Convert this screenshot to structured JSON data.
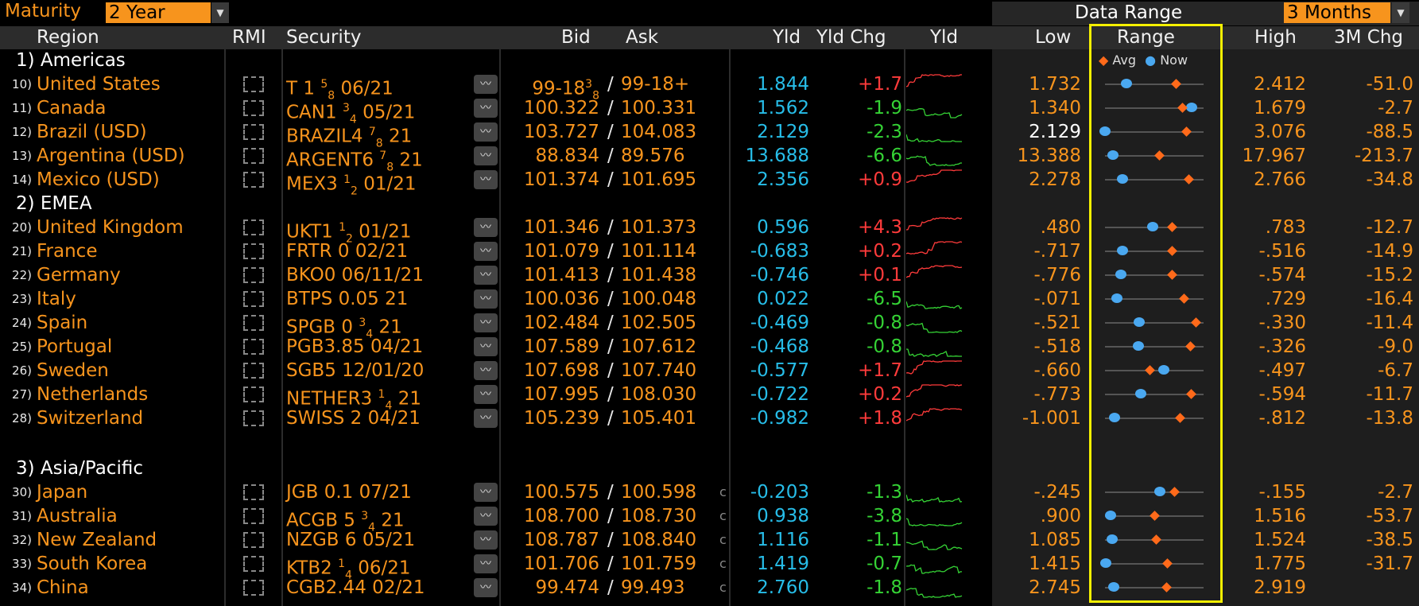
{
  "toolbar": {
    "maturity_label": "Maturity",
    "maturity_value": "2 Year",
    "data_range_label": "Data Range",
    "data_range_value": "3 Months"
  },
  "headers": {
    "region": "Region",
    "rmi": "RMI",
    "security": "Security",
    "bid": "Bid",
    "ask": "Ask",
    "yld": "Yld",
    "yld_chg": "Yld Chg",
    "yld_spark": "Yld",
    "low": "Low",
    "range": "Range",
    "high": "High",
    "chg": "3M Chg",
    "legend_avg": "Avg",
    "legend_now": "Now"
  },
  "colors": {
    "accent": "#f7941d",
    "up": "#ff3b3b",
    "down": "#35d335",
    "yield": "#27bde8",
    "highlight": "#f5f000"
  },
  "groups": [
    {
      "label": "1) Americas"
    },
    {
      "label": "2) EMEA"
    },
    {
      "label": "3) Asia/Pacific"
    }
  ],
  "rows": [
    {
      "idx": "10)",
      "region": "United States",
      "sec_a": "T 1 ",
      "sec_f": "5",
      "sec_d": "8",
      "sec_b": " 06/21",
      "bid": "99-18",
      "bid_f": "3",
      "bid_d": "8",
      "ask": "99-18+",
      "c": "",
      "yld": "1.844",
      "yneg": false,
      "chg": "+1.7",
      "low": "1.732",
      "low_w": false,
      "high": "2.412",
      "m3": "-51.0",
      "now": 0.22,
      "avg": 0.72
    },
    {
      "idx": "11)",
      "region": "Canada",
      "sec_a": "CAN1 ",
      "sec_f": "3",
      "sec_d": "4",
      "sec_b": " 05/21",
      "bid": "100.322",
      "ask": "100.331",
      "c": "",
      "yld": "1.562",
      "yneg": false,
      "chg": "-1.9",
      "low": "1.340",
      "low_w": false,
      "high": "1.679",
      "m3": "-2.7",
      "now": 0.88,
      "avg": 0.78
    },
    {
      "idx": "12)",
      "region": "Brazil (USD)",
      "sec_a": "BRAZIL4 ",
      "sec_f": "7",
      "sec_d": "8",
      "sec_b": " 21",
      "bid": "103.727",
      "ask": "104.083",
      "c": "",
      "yld": "2.129",
      "yneg": false,
      "chg": "-2.3",
      "low": "2.129",
      "low_w": true,
      "high": "3.076",
      "m3": "-88.5",
      "now": 0.0,
      "avg": 0.82
    },
    {
      "idx": "13)",
      "region": "Argentina (USD)",
      "sec_a": "ARGENT6 ",
      "sec_f": "7",
      "sec_d": "8",
      "sec_b": " 21",
      "bid": "88.834",
      "ask": "89.576",
      "c": "",
      "yld": "13.688",
      "yneg": false,
      "chg": "-6.6",
      "low": "13.388",
      "low_w": false,
      "high": "17.967",
      "m3": "-213.7",
      "now": 0.08,
      "avg": 0.55
    },
    {
      "idx": "14)",
      "region": "Mexico (USD)",
      "sec_a": "MEX3 ",
      "sec_f": "1",
      "sec_d": "2",
      "sec_b": " 01/21",
      "bid": "101.374",
      "ask": "101.695",
      "c": "",
      "yld": "2.356",
      "yneg": false,
      "chg": "+0.9",
      "low": "2.278",
      "low_w": false,
      "high": "2.766",
      "m3": "-34.8",
      "now": 0.18,
      "avg": 0.85
    },
    {
      "idx": "20)",
      "region": "United Kingdom",
      "sec_a": "UKT1 ",
      "sec_f": "1",
      "sec_d": "2",
      "sec_b": " 01/21",
      "bid": "101.346",
      "ask": "101.373",
      "c": "",
      "yld": "0.596",
      "yneg": false,
      "chg": "+4.3",
      "low": ".480",
      "low_w": false,
      "high": ".783",
      "m3": "-12.7",
      "now": 0.48,
      "avg": 0.68
    },
    {
      "idx": "21)",
      "region": "France",
      "sec_a": "FRTR 0 02/21",
      "bid": "101.079",
      "ask": "101.114",
      "c": "",
      "yld": "-0.683",
      "yneg": true,
      "chg": "+0.2",
      "low": "-.717",
      "low_w": false,
      "high": "-.516",
      "m3": "-14.9",
      "now": 0.18,
      "avg": 0.68
    },
    {
      "idx": "22)",
      "region": "Germany",
      "sec_a": "BKO0 06/11/21",
      "bid": "101.413",
      "ask": "101.438",
      "c": "",
      "yld": "-0.746",
      "yneg": true,
      "chg": "+0.1",
      "low": "-.776",
      "low_w": false,
      "high": "-.574",
      "m3": "-15.2",
      "now": 0.16,
      "avg": 0.68
    },
    {
      "idx": "23)",
      "region": "Italy",
      "sec_a": "BTPS 0.05 21",
      "bid": "100.036",
      "ask": "100.048",
      "c": "",
      "yld": "0.022",
      "yneg": false,
      "chg": "-6.5",
      "low": "-.071",
      "low_w": false,
      "high": ".729",
      "m3": "-16.4",
      "now": 0.12,
      "avg": 0.8
    },
    {
      "idx": "24)",
      "region": "Spain",
      "sec_a": "SPGB 0 ",
      "sec_f": "3",
      "sec_d": "4",
      "sec_b": " 21",
      "bid": "102.484",
      "ask": "102.505",
      "c": "",
      "yld": "-0.469",
      "yneg": true,
      "chg": "-0.8",
      "low": "-.521",
      "low_w": false,
      "high": "-.330",
      "m3": "-11.4",
      "now": 0.35,
      "avg": 0.92
    },
    {
      "idx": "25)",
      "region": "Portugal",
      "sec_a": "PGB3.85 04/21",
      "bid": "107.589",
      "ask": "107.612",
      "c": "",
      "yld": "-0.468",
      "yneg": true,
      "chg": "-0.8",
      "low": "-.518",
      "low_w": false,
      "high": "-.326",
      "m3": "-9.0",
      "now": 0.34,
      "avg": 0.86
    },
    {
      "idx": "26)",
      "region": "Sweden",
      "sec_a": "SGB5 12/01/20",
      "bid": "107.698",
      "ask": "107.740",
      "c": "",
      "yld": "-0.577",
      "yneg": true,
      "chg": "+1.7",
      "low": "-.660",
      "low_w": false,
      "high": "-.497",
      "m3": "-6.7",
      "now": 0.6,
      "avg": 0.45
    },
    {
      "idx": "27)",
      "region": "Netherlands",
      "sec_a": "NETHER3 ",
      "sec_f": "1",
      "sec_d": "4",
      "sec_b": " 21",
      "bid": "107.995",
      "ask": "108.030",
      "c": "",
      "yld": "-0.722",
      "yneg": true,
      "chg": "+0.2",
      "low": "-.773",
      "low_w": false,
      "high": "-.594",
      "m3": "-11.7",
      "now": 0.36,
      "avg": 0.87
    },
    {
      "idx": "28)",
      "region": "Switzerland",
      "sec_a": "SWISS 2 04/21",
      "bid": "105.239",
      "ask": "105.401",
      "c": "",
      "yld": "-0.982",
      "yneg": true,
      "chg": "+1.8",
      "low": "-1.001",
      "low_w": false,
      "high": "-.812",
      "m3": "-13.8",
      "now": 0.1,
      "avg": 0.76
    },
    {
      "idx": "30)",
      "region": "Japan",
      "sec_a": "JGB 0.1 07/21",
      "bid": "100.575",
      "ask": "100.598",
      "c": "c",
      "yld": "-0.203",
      "yneg": true,
      "chg": "-1.3",
      "low": "-.245",
      "low_w": false,
      "high": "-.155",
      "m3": "-2.7",
      "now": 0.56,
      "avg": 0.7
    },
    {
      "idx": "31)",
      "region": "Australia",
      "sec_a": "ACGB 5 ",
      "sec_f": "3",
      "sec_d": "4",
      "sec_b": " 21",
      "bid": "108.700",
      "ask": "108.730",
      "c": "c",
      "yld": "0.938",
      "yneg": false,
      "chg": "-3.8",
      "low": ".900",
      "low_w": false,
      "high": "1.516",
      "m3": "-53.7",
      "now": 0.06,
      "avg": 0.5
    },
    {
      "idx": "32)",
      "region": "New Zealand",
      "sec_a": "NZGB 6 05/21",
      "bid": "108.787",
      "ask": "108.840",
      "c": "c",
      "yld": "1.116",
      "yneg": false,
      "chg": "-1.1",
      "low": "1.085",
      "low_w": false,
      "high": "1.524",
      "m3": "-38.5",
      "now": 0.07,
      "avg": 0.52
    },
    {
      "idx": "33)",
      "region": "South Korea",
      "sec_a": "KTB2 ",
      "sec_f": "1",
      "sec_d": "4",
      "sec_b": " 06/21",
      "bid": "101.706",
      "ask": "101.759",
      "c": "c",
      "yld": "1.419",
      "yneg": false,
      "chg": "-0.7",
      "low": "1.415",
      "low_w": false,
      "high": "1.775",
      "m3": "-31.7",
      "now": 0.01,
      "avg": 0.63
    },
    {
      "idx": "34)",
      "region": "China",
      "sec_a": "CGB2.44 02/21",
      "bid": "99.474",
      "ask": "99.493",
      "c": "c",
      "yld": "2.760",
      "yneg": false,
      "chg": "-1.8",
      "low": "2.745",
      "low_w": false,
      "high": "2.919",
      "m3": "",
      "now": 0.09,
      "avg": 0.62
    }
  ]
}
